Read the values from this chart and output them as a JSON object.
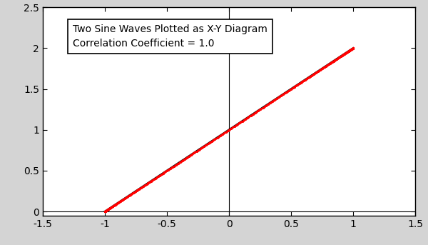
{
  "title_line1": "Two Sine Waves Plotted as X-Y Diagram",
  "title_line2": "Correlation Coefficient = 1.0",
  "xlim": [
    -1.5,
    1.5
  ],
  "ylim": [
    -0.05,
    2.5
  ],
  "xticks": [
    -1.5,
    -1.0,
    -0.5,
    0.0,
    0.5,
    1.0,
    1.5
  ],
  "yticks": [
    0.0,
    0.5,
    1.0,
    1.5,
    2.0,
    2.5
  ],
  "xtick_labels": [
    "-1.5",
    "-1",
    "-0.5",
    "0",
    "0.5",
    "1",
    "1.5"
  ],
  "ytick_labels": [
    "0",
    "0.5",
    "1",
    "1.5",
    "2",
    "2.5"
  ],
  "line_color": "#000000",
  "dot_color": "#ff0000",
  "background_color": "#d4d4d4",
  "axes_background": "#ffffff",
  "n_points": 500,
  "font_size": 10
}
